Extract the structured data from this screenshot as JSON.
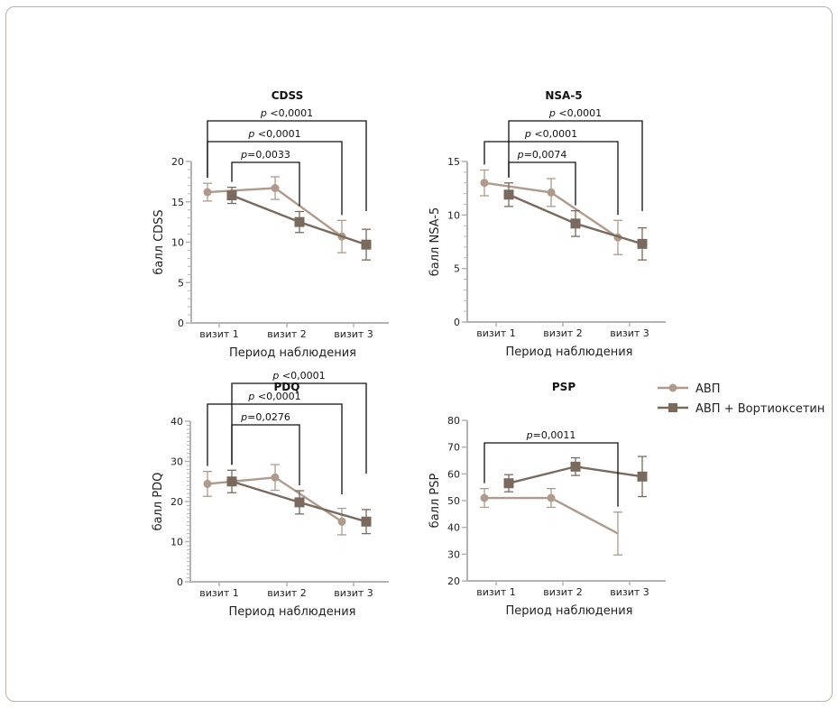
{
  "colors": {
    "avp": "#b09a8c",
    "combo": "#7a6a5e",
    "axis": "#b3b3b3",
    "bracket": "#111111",
    "frame": "#b9b0a7"
  },
  "legend": {
    "position": "right-middle",
    "items": [
      {
        "label": "АВП",
        "marker": "circle",
        "series": "avp"
      },
      {
        "label": "АВП + Вортиоксетин",
        "marker": "square",
        "series": "combo"
      }
    ]
  },
  "chart_data": [
    {
      "type": "line",
      "title": "CDSS",
      "xlabel": "Период наблюдения",
      "ylabel": "балл CDSS",
      "categories": [
        "визит 1",
        "визит 2",
        "визит 3"
      ],
      "ylim": [
        0,
        20
      ],
      "yticks": [
        0,
        5,
        10,
        15,
        20
      ],
      "minor_step": 1,
      "series": [
        {
          "name": "АВП",
          "key": "avp",
          "values": [
            16.2,
            16.7,
            10.7
          ],
          "err": [
            1.1,
            1.4,
            2.0
          ],
          "markers": [
            true,
            true,
            true
          ]
        },
        {
          "name": "АВП + Вортиоксетин",
          "key": "combo",
          "values": [
            15.8,
            12.5,
            9.7
          ],
          "err": [
            1.0,
            1.3,
            1.9
          ],
          "markers": [
            true,
            true,
            true
          ]
        }
      ],
      "brackets": [
        {
          "label_p": "p",
          "label_rest": " <0,0001",
          "from": "avp:0",
          "to": "combo:2",
          "level": 2
        },
        {
          "label_p": "p",
          "label_rest": " <0,0001",
          "from": "avp:0",
          "to": "avp:2",
          "level": 1
        },
        {
          "label_p": "p",
          "label_rest": "=0,0033",
          "from": "combo:0",
          "to": "combo:1",
          "level": 0
        }
      ]
    },
    {
      "type": "line",
      "title": "NSA-5",
      "xlabel": "Период наблюдения",
      "ylabel": "балл NSA-5",
      "categories": [
        "визит 1",
        "визит 2",
        "визит 3"
      ],
      "ylim": [
        0,
        15
      ],
      "yticks": [
        0,
        5,
        10,
        15
      ],
      "minor_step": 1,
      "series": [
        {
          "name": "АВП",
          "key": "avp",
          "values": [
            13.0,
            12.1,
            7.9
          ],
          "err": [
            1.2,
            1.3,
            1.6
          ],
          "markers": [
            true,
            true,
            true
          ]
        },
        {
          "name": "АВП + Вортиоксетин",
          "key": "combo",
          "values": [
            11.9,
            9.2,
            7.3
          ],
          "err": [
            1.1,
            1.2,
            1.5
          ],
          "markers": [
            true,
            true,
            true
          ]
        }
      ],
      "brackets": [
        {
          "label_p": "p",
          "label_rest": " <0,0001",
          "from": "combo:0",
          "to": "combo:2",
          "level": 2
        },
        {
          "label_p": "p",
          "label_rest": " <0,0001",
          "from": "avp:0",
          "to": "avp:2",
          "level": 1
        },
        {
          "label_p": "p",
          "label_rest": "=0,0074",
          "from": "combo:0",
          "to": "combo:1",
          "level": 0
        }
      ]
    },
    {
      "type": "line",
      "title": "PDQ",
      "xlabel": "Период наблюдения",
      "ylabel": "балл PDQ",
      "categories": [
        "визит 1",
        "визит 2",
        "визит 3"
      ],
      "ylim": [
        0,
        40
      ],
      "yticks": [
        0,
        10,
        20,
        30,
        40
      ],
      "minor_step": 1,
      "series": [
        {
          "name": "АВП",
          "key": "avp",
          "values": [
            24.4,
            26.0,
            15.0
          ],
          "err": [
            3.1,
            3.2,
            3.3
          ],
          "markers": [
            true,
            true,
            true
          ]
        },
        {
          "name": "АВП + Вортиоксетин",
          "key": "combo",
          "values": [
            25.0,
            19.8,
            15.0
          ],
          "err": [
            2.8,
            2.9,
            3.0
          ],
          "markers": [
            true,
            true,
            true
          ]
        }
      ],
      "brackets": [
        {
          "label_p": "p",
          "label_rest": " <0,0001",
          "from": "combo:0",
          "to": "combo:2",
          "level": 2
        },
        {
          "label_p": "p",
          "label_rest": " <0,0001",
          "from": "avp:0",
          "to": "avp:2",
          "level": 1
        },
        {
          "label_p": "p",
          "label_rest": "=0,0276",
          "from": "combo:0",
          "to": "combo:1",
          "level": 0
        }
      ]
    },
    {
      "type": "line",
      "title": "PSP",
      "xlabel": "Период наблюдения",
      "ylabel": "балл PSP",
      "categories": [
        "визит 1",
        "визит 2",
        "визит 3"
      ],
      "ylim": [
        20,
        80
      ],
      "yticks": [
        20,
        30,
        40,
        50,
        60,
        70,
        80
      ],
      "minor_step": null,
      "series": [
        {
          "name": "АВП",
          "key": "avp",
          "values": [
            51.0,
            51.0,
            37.7
          ],
          "err": [
            3.5,
            3.5,
            8.0
          ],
          "markers": [
            true,
            true,
            false
          ]
        },
        {
          "name": "АВП + Вортиоксетин",
          "key": "combo",
          "values": [
            56.5,
            62.7,
            59.0
          ],
          "err": [
            3.2,
            3.3,
            7.5
          ],
          "markers": [
            true,
            true,
            true
          ]
        }
      ],
      "brackets": [
        {
          "label_p": "p",
          "label_rest": "=0,0011",
          "from": "avp:0",
          "to": "avp:2",
          "level": 0
        }
      ]
    }
  ]
}
